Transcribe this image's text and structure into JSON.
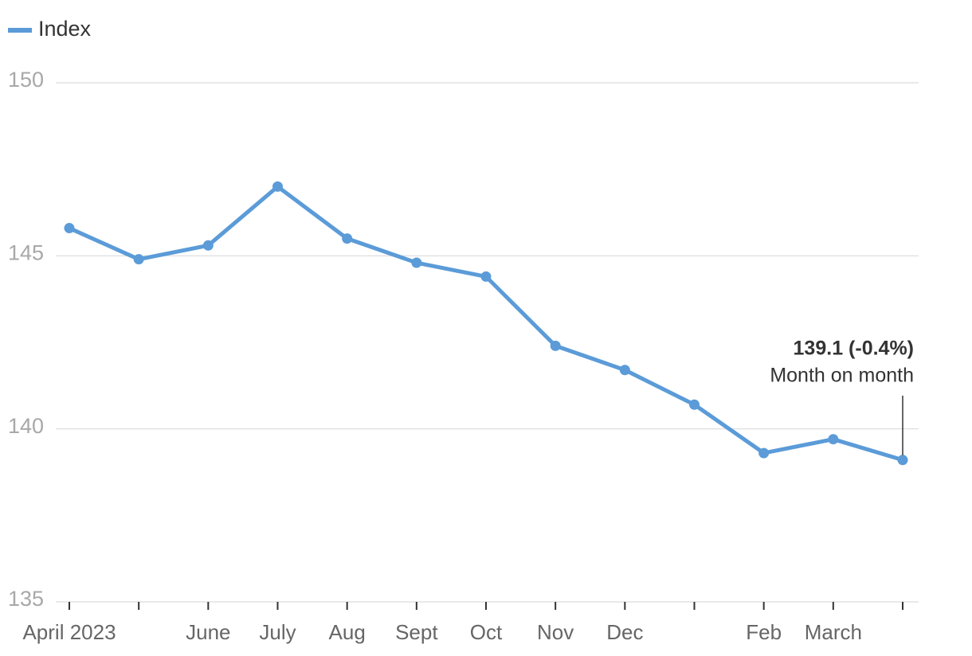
{
  "chart_data": {
    "type": "line",
    "categories": [
      "April 2023",
      null,
      "June",
      "July",
      "Aug",
      "Sept",
      "Oct",
      "Nov",
      "Dec",
      null,
      "Feb",
      "March",
      null
    ],
    "series": [
      {
        "name": "Index",
        "color": "#5b9bd8",
        "values": [
          145.8,
          144.9,
          145.3,
          147.0,
          145.5,
          144.8,
          144.4,
          142.4,
          141.7,
          140.7,
          139.3,
          139.7,
          139.1
        ]
      }
    ],
    "ylim": [
      135,
      150
    ],
    "yticks": [
      135,
      140,
      145,
      150
    ],
    "grid": true,
    "legend": "top-left",
    "annotations": [
      "139.1 (-0.4%)",
      "Month on month"
    ]
  }
}
